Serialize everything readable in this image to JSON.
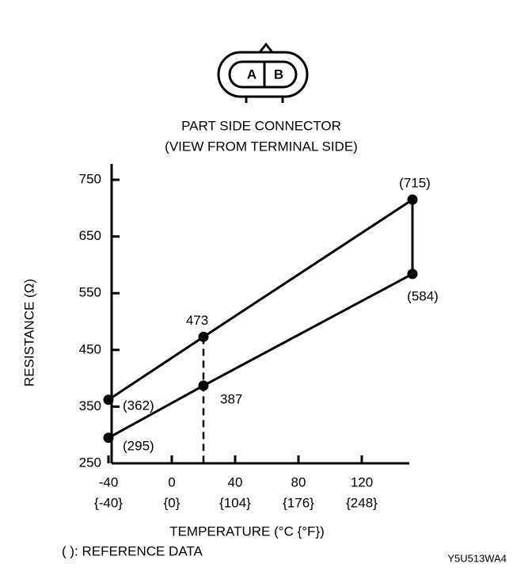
{
  "chart_data": {
    "type": "line",
    "connector": {
      "terminals": [
        "A",
        "B"
      ]
    },
    "title": "PART SIDE CONNECTOR",
    "subtitle": "(VIEW FROM TERMINAL SIDE)",
    "y_label": "RESISTANCE (Ω)",
    "x_label": "TEMPERATURE (°C {°F})",
    "note": "(   ): REFERENCE DATA",
    "figure_code": "Y5U513WA4",
    "x": [
      -40,
      20,
      152
    ],
    "series": [
      {
        "color": "#000000",
        "values": [
          362,
          473,
          715
        ],
        "value_labels": [
          "(362)",
          "473",
          "(715)"
        ]
      },
      {
        "color": "#000000",
        "values": [
          295,
          387,
          584
        ],
        "value_labels": [
          "(295)",
          "387",
          "(584)"
        ]
      }
    ],
    "xlim": [
      -40,
      150
    ],
    "ylim": [
      250,
      750
    ],
    "xticks": [
      -40,
      0,
      40,
      80,
      120
    ],
    "xticks_secondary": [
      "{-40}",
      "{0}",
      "{104}",
      "{176}",
      "{248}"
    ],
    "yticks": [
      250,
      350,
      450,
      550,
      650,
      750
    ]
  }
}
